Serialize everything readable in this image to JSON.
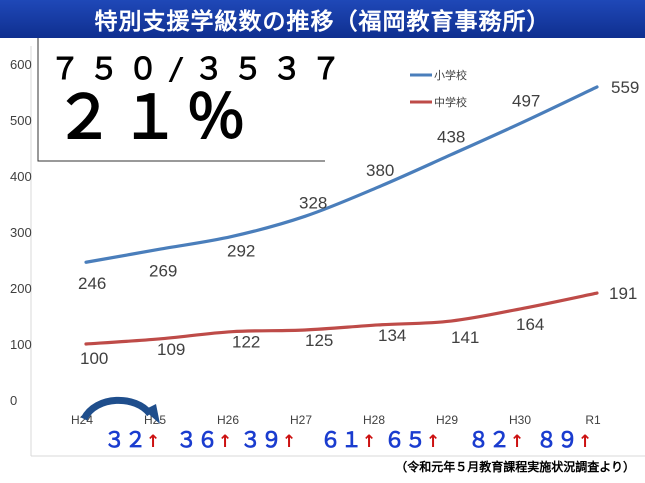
{
  "slide": {
    "title": "特別支援学級数の推移（福岡教育事務所）",
    "source": "（令和元年５月教育課程実施状況調査より）"
  },
  "inset": {
    "ratio": "７５０/３５３７",
    "percent": "２１％"
  },
  "increments": [
    {
      "value": "３２",
      "arrow": "↑"
    },
    {
      "value": "３６",
      "arrow": "↑"
    },
    {
      "value": "３９",
      "arrow": "↑"
    },
    {
      "value": "６１",
      "arrow": "↑"
    },
    {
      "value": "６５",
      "arrow": "↑"
    },
    {
      "value": "８２",
      "arrow": "↑"
    },
    {
      "value": "８９",
      "arrow": "↑"
    }
  ],
  "chart_data": {
    "type": "line",
    "categories": [
      "H24",
      "H25",
      "H26",
      "H27",
      "H28",
      "H29",
      "H30",
      "R1"
    ],
    "series": [
      {
        "name": "小学校",
        "color": "#4a7ebb",
        "values": [
          246,
          269,
          292,
          328,
          380,
          438,
          497,
          559
        ]
      },
      {
        "name": "中学校",
        "color": "#be4b48",
        "values": [
          100,
          109,
          122,
          125,
          134,
          141,
          164,
          191
        ]
      }
    ],
    "ylim": [
      0,
      600
    ],
    "yticks": [
      0,
      100,
      200,
      300,
      400,
      500,
      600
    ],
    "grid": false,
    "legend_position": "top-right"
  }
}
